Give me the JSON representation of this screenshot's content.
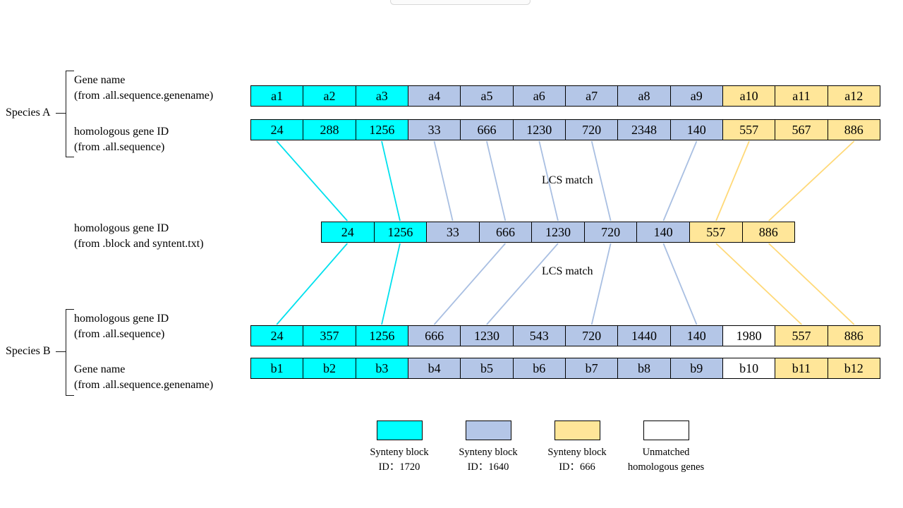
{
  "colors": {
    "cyan": "#00ffff",
    "blue": "#b4c6e7",
    "yellow": "#ffe699",
    "white": "#ffffff",
    "line_cyan": "#00e1ee",
    "line_blue": "#a9bfe2",
    "line_yellow": "#ffd978"
  },
  "labels": {
    "species_a": "Species A",
    "species_b": "Species B",
    "a_row1_line1": "Gene name",
    "a_row1_line2": "(from .all.sequence.genename)",
    "a_row2_line1": "homologous gene ID",
    "a_row2_line2": "(from .all.sequence)",
    "mid_line1": "homologous gene ID",
    "mid_line2": "(from .block and syntent.txt)",
    "b_row1_line1": "homologous gene ID",
    "b_row1_line2": "(from .all.sequence)",
    "b_row2_line1": "Gene name",
    "b_row2_line2": "(from .all.sequence.genename)",
    "lcs_top": "LCS match",
    "lcs_bottom": "LCS match"
  },
  "rows": {
    "species_a_names": [
      {
        "value": "a1",
        "block": "cyan"
      },
      {
        "value": "a2",
        "block": "cyan"
      },
      {
        "value": "a3",
        "block": "cyan"
      },
      {
        "value": "a4",
        "block": "blue"
      },
      {
        "value": "a5",
        "block": "blue"
      },
      {
        "value": "a6",
        "block": "blue"
      },
      {
        "value": "a7",
        "block": "blue"
      },
      {
        "value": "a8",
        "block": "blue"
      },
      {
        "value": "a9",
        "block": "blue"
      },
      {
        "value": "a10",
        "block": "yellow"
      },
      {
        "value": "a11",
        "block": "yellow"
      },
      {
        "value": "a12",
        "block": "yellow"
      }
    ],
    "species_a_ids": [
      {
        "value": "24",
        "block": "cyan"
      },
      {
        "value": "288",
        "block": "cyan"
      },
      {
        "value": "1256",
        "block": "cyan"
      },
      {
        "value": "33",
        "block": "blue"
      },
      {
        "value": "666",
        "block": "blue"
      },
      {
        "value": "1230",
        "block": "blue"
      },
      {
        "value": "720",
        "block": "blue"
      },
      {
        "value": "2348",
        "block": "blue"
      },
      {
        "value": "140",
        "block": "blue"
      },
      {
        "value": "557",
        "block": "yellow"
      },
      {
        "value": "567",
        "block": "yellow"
      },
      {
        "value": "886",
        "block": "yellow"
      }
    ],
    "middle_ids": [
      {
        "value": "24",
        "block": "cyan"
      },
      {
        "value": "1256",
        "block": "cyan"
      },
      {
        "value": "33",
        "block": "blue"
      },
      {
        "value": "666",
        "block": "blue"
      },
      {
        "value": "1230",
        "block": "blue"
      },
      {
        "value": "720",
        "block": "blue"
      },
      {
        "value": "140",
        "block": "blue"
      },
      {
        "value": "557",
        "block": "yellow"
      },
      {
        "value": "886",
        "block": "yellow"
      }
    ],
    "species_b_ids": [
      {
        "value": "24",
        "block": "cyan"
      },
      {
        "value": "357",
        "block": "cyan"
      },
      {
        "value": "1256",
        "block": "cyan"
      },
      {
        "value": "666",
        "block": "blue"
      },
      {
        "value": "1230",
        "block": "blue"
      },
      {
        "value": "543",
        "block": "blue"
      },
      {
        "value": "720",
        "block": "blue"
      },
      {
        "value": "1440",
        "block": "blue"
      },
      {
        "value": "140",
        "block": "blue"
      },
      {
        "value": "1980",
        "block": "white"
      },
      {
        "value": "557",
        "block": "yellow"
      },
      {
        "value": "886",
        "block": "yellow"
      }
    ],
    "species_b_names": [
      {
        "value": "b1",
        "block": "cyan"
      },
      {
        "value": "b2",
        "block": "cyan"
      },
      {
        "value": "b3",
        "block": "cyan"
      },
      {
        "value": "b4",
        "block": "blue"
      },
      {
        "value": "b5",
        "block": "blue"
      },
      {
        "value": "b6",
        "block": "blue"
      },
      {
        "value": "b7",
        "block": "blue"
      },
      {
        "value": "b8",
        "block": "blue"
      },
      {
        "value": "b9",
        "block": "blue"
      },
      {
        "value": "b10",
        "block": "white"
      },
      {
        "value": "b11",
        "block": "yellow"
      },
      {
        "value": "b12",
        "block": "yellow"
      }
    ]
  },
  "connections": {
    "top_to_middle": [
      {
        "from": 0,
        "to": 0,
        "color": "cyan"
      },
      {
        "from": 2,
        "to": 1,
        "color": "cyan"
      },
      {
        "from": 3,
        "to": 2,
        "color": "blue"
      },
      {
        "from": 4,
        "to": 3,
        "color": "blue"
      },
      {
        "from": 5,
        "to": 4,
        "color": "blue"
      },
      {
        "from": 6,
        "to": 5,
        "color": "blue"
      },
      {
        "from": 8,
        "to": 6,
        "color": "blue"
      },
      {
        "from": 9,
        "to": 7,
        "color": "yellow"
      },
      {
        "from": 11,
        "to": 8,
        "color": "yellow"
      }
    ],
    "middle_to_bottom": [
      {
        "from": 0,
        "to": 0,
        "color": "cyan"
      },
      {
        "from": 1,
        "to": 2,
        "color": "cyan"
      },
      {
        "from": 3,
        "to": 3,
        "color": "blue"
      },
      {
        "from": 4,
        "to": 4,
        "color": "blue"
      },
      {
        "from": 5,
        "to": 6,
        "color": "blue"
      },
      {
        "from": 6,
        "to": 8,
        "color": "blue"
      },
      {
        "from": 7,
        "to": 10,
        "color": "yellow"
      },
      {
        "from": 8,
        "to": 11,
        "color": "yellow"
      }
    ]
  },
  "legend": [
    {
      "block": "cyan",
      "line1": "Synteny block",
      "line2": "ID：1720"
    },
    {
      "block": "blue",
      "line1": "Synteny block",
      "line2": "ID：1640"
    },
    {
      "block": "yellow",
      "line1": "Synteny block",
      "line2": "ID：666"
    },
    {
      "block": "white",
      "line1": "Unmatched",
      "line2": "homologous genes"
    }
  ]
}
